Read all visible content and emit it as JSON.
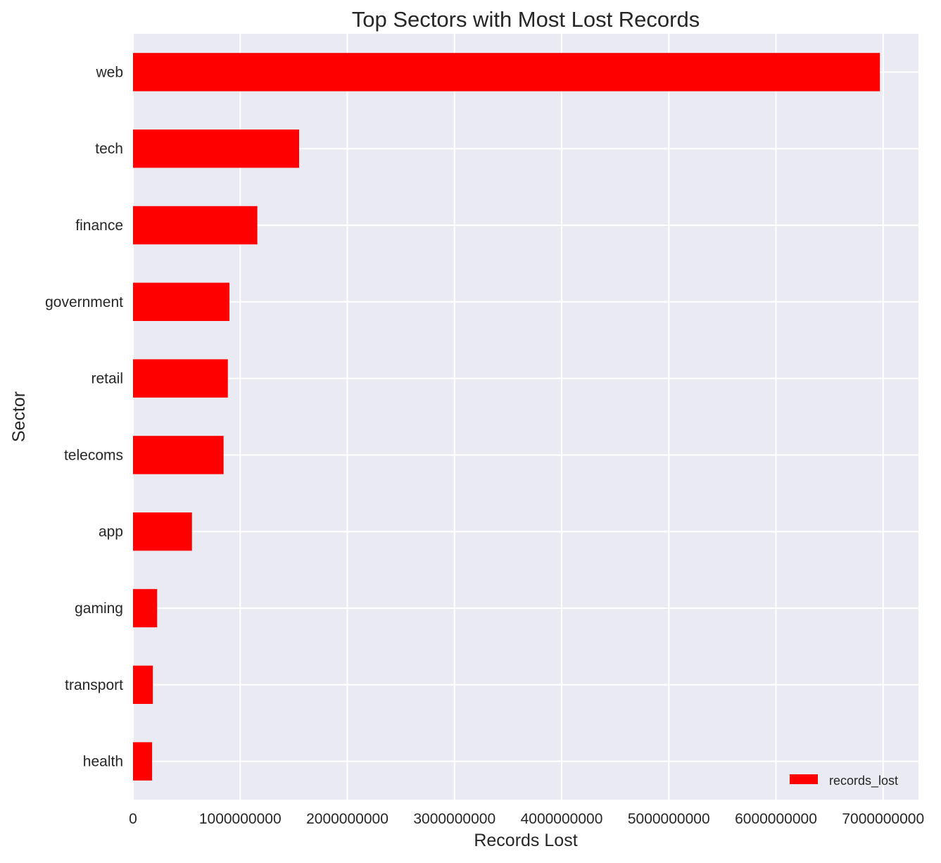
{
  "chart_data": {
    "type": "bar",
    "orientation": "horizontal",
    "title": "Top Sectors with Most Lost Records",
    "xlabel": "Records Lost",
    "ylabel": "Sector",
    "categories": [
      "web",
      "tech",
      "finance",
      "government",
      "retail",
      "telecoms",
      "app",
      "gaming",
      "transport",
      "health"
    ],
    "series": [
      {
        "name": "records_lost",
        "values": [
          6970000000,
          1550000000,
          1160000000,
          900000000,
          885000000,
          845000000,
          550000000,
          225000000,
          185000000,
          178000000
        ]
      }
    ],
    "xlim": [
      0,
      7330000000
    ],
    "xticks": [
      0,
      1000000000,
      2000000000,
      3000000000,
      4000000000,
      5000000000,
      6000000000,
      7000000000
    ],
    "xtick_labels": [
      "0",
      "1000000000",
      "2000000000",
      "3000000000",
      "4000000000",
      "5000000000",
      "6000000000",
      "7000000000"
    ],
    "grid": true,
    "legend": {
      "placement": "lower-right",
      "entries": [
        "records_lost"
      ]
    },
    "colors": {
      "bar": "#ff0000",
      "plot_background": "#eaeaf2",
      "grid": "#ffffff",
      "text": "#262626"
    }
  }
}
